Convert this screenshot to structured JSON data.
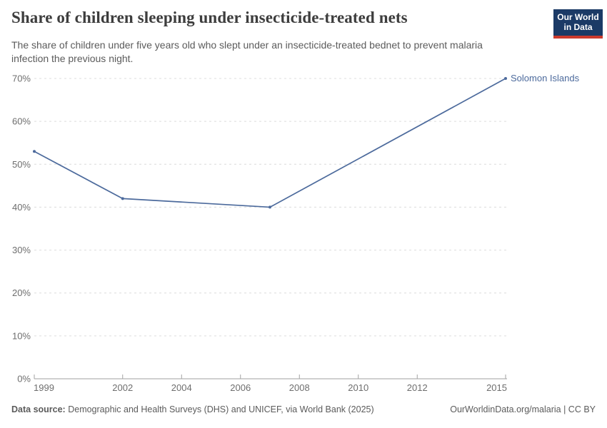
{
  "chart_data": {
    "type": "line",
    "title": "Share of children sleeping under insecticide-treated nets",
    "subtitle": "The share of children under five years old who slept under an insecticide-treated bednet to prevent malaria infection the previous night.",
    "unit": "%",
    "series": [
      {
        "name": "Solomon Islands",
        "color": "#4c6a9c",
        "points": [
          {
            "year": 1999,
            "value": 53
          },
          {
            "year": 2002,
            "value": 42
          },
          {
            "year": 2007,
            "value": 40
          },
          {
            "year": 2015,
            "value": 70
          }
        ]
      }
    ],
    "xlim": [
      1999,
      2015
    ],
    "ylim": [
      0,
      70
    ],
    "x_ticks": [
      1999,
      2002,
      2004,
      2006,
      2008,
      2010,
      2012,
      2015
    ],
    "x_tick_labels": [
      "1999",
      "2002",
      "2004",
      "2006",
      "2008",
      "2010",
      "2012",
      "2015"
    ],
    "y_ticks": [
      0,
      10,
      20,
      30,
      40,
      50,
      60,
      70
    ],
    "y_tick_labels": [
      "0%",
      "10%",
      "20%",
      "30%",
      "40%",
      "50%",
      "60%",
      "70%"
    ],
    "grid": "horizontal-dashed",
    "legend": "inline-end-label"
  },
  "logo": {
    "line1": "Our World",
    "line2": "in Data",
    "bg_color": "#1b3a66",
    "accent_color": "#cc3a2d"
  },
  "footer": {
    "source_label": "Data source:",
    "source_text": "Demographic and Health Surveys (DHS) and UNICEF, via World Bank (2025)",
    "license_text": "OurWorldinData.org/malaria | CC BY"
  },
  "colors": {
    "line": "#4c6a9c",
    "title": "#3d3d3d",
    "subtitle": "#5b5b5b",
    "axis_label": "#6e6e6e",
    "grid": "#dcdcdc",
    "axis": "#a2a2a2",
    "footer_text": "#5b5b5b"
  }
}
